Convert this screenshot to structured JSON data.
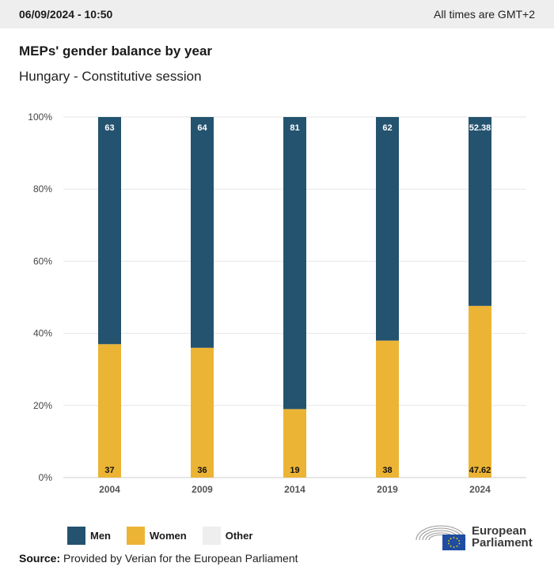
{
  "header": {
    "datetime": "06/09/2024 - 10:50",
    "timezone_note": "All times are GMT+2"
  },
  "title": "MEPs' gender balance by year",
  "subtitle": "Hungary - Constitutive session",
  "colors": {
    "men": "#24536f",
    "women": "#ecb434",
    "other": "#eeeeee",
    "grid": "#e6e6e6"
  },
  "legend": {
    "men": "Men",
    "women": "Women",
    "other": "Other"
  },
  "source": {
    "label": "Source:",
    "text": " Provided by Verian for the European Parliament"
  },
  "logo": {
    "line1": "European",
    "line2": "Parliament"
  },
  "chart_data": {
    "type": "bar",
    "stacked": true,
    "categories": [
      "2004",
      "2009",
      "2014",
      "2019",
      "2024"
    ],
    "series": [
      {
        "name": "Women",
        "values": [
          37,
          36,
          19,
          38,
          47.62
        ],
        "labels": [
          "37",
          "36",
          "19",
          "38",
          "47.62"
        ]
      },
      {
        "name": "Men",
        "values": [
          63,
          64,
          81,
          62,
          52.38
        ],
        "labels": [
          "63",
          "64",
          "81",
          "62",
          "52.38"
        ]
      }
    ],
    "yticks": [
      "0%",
      "20%",
      "40%",
      "60%",
      "80%",
      "100%"
    ],
    "ylim": [
      0,
      100
    ],
    "grid": true,
    "legend_position": "bottom-left"
  }
}
